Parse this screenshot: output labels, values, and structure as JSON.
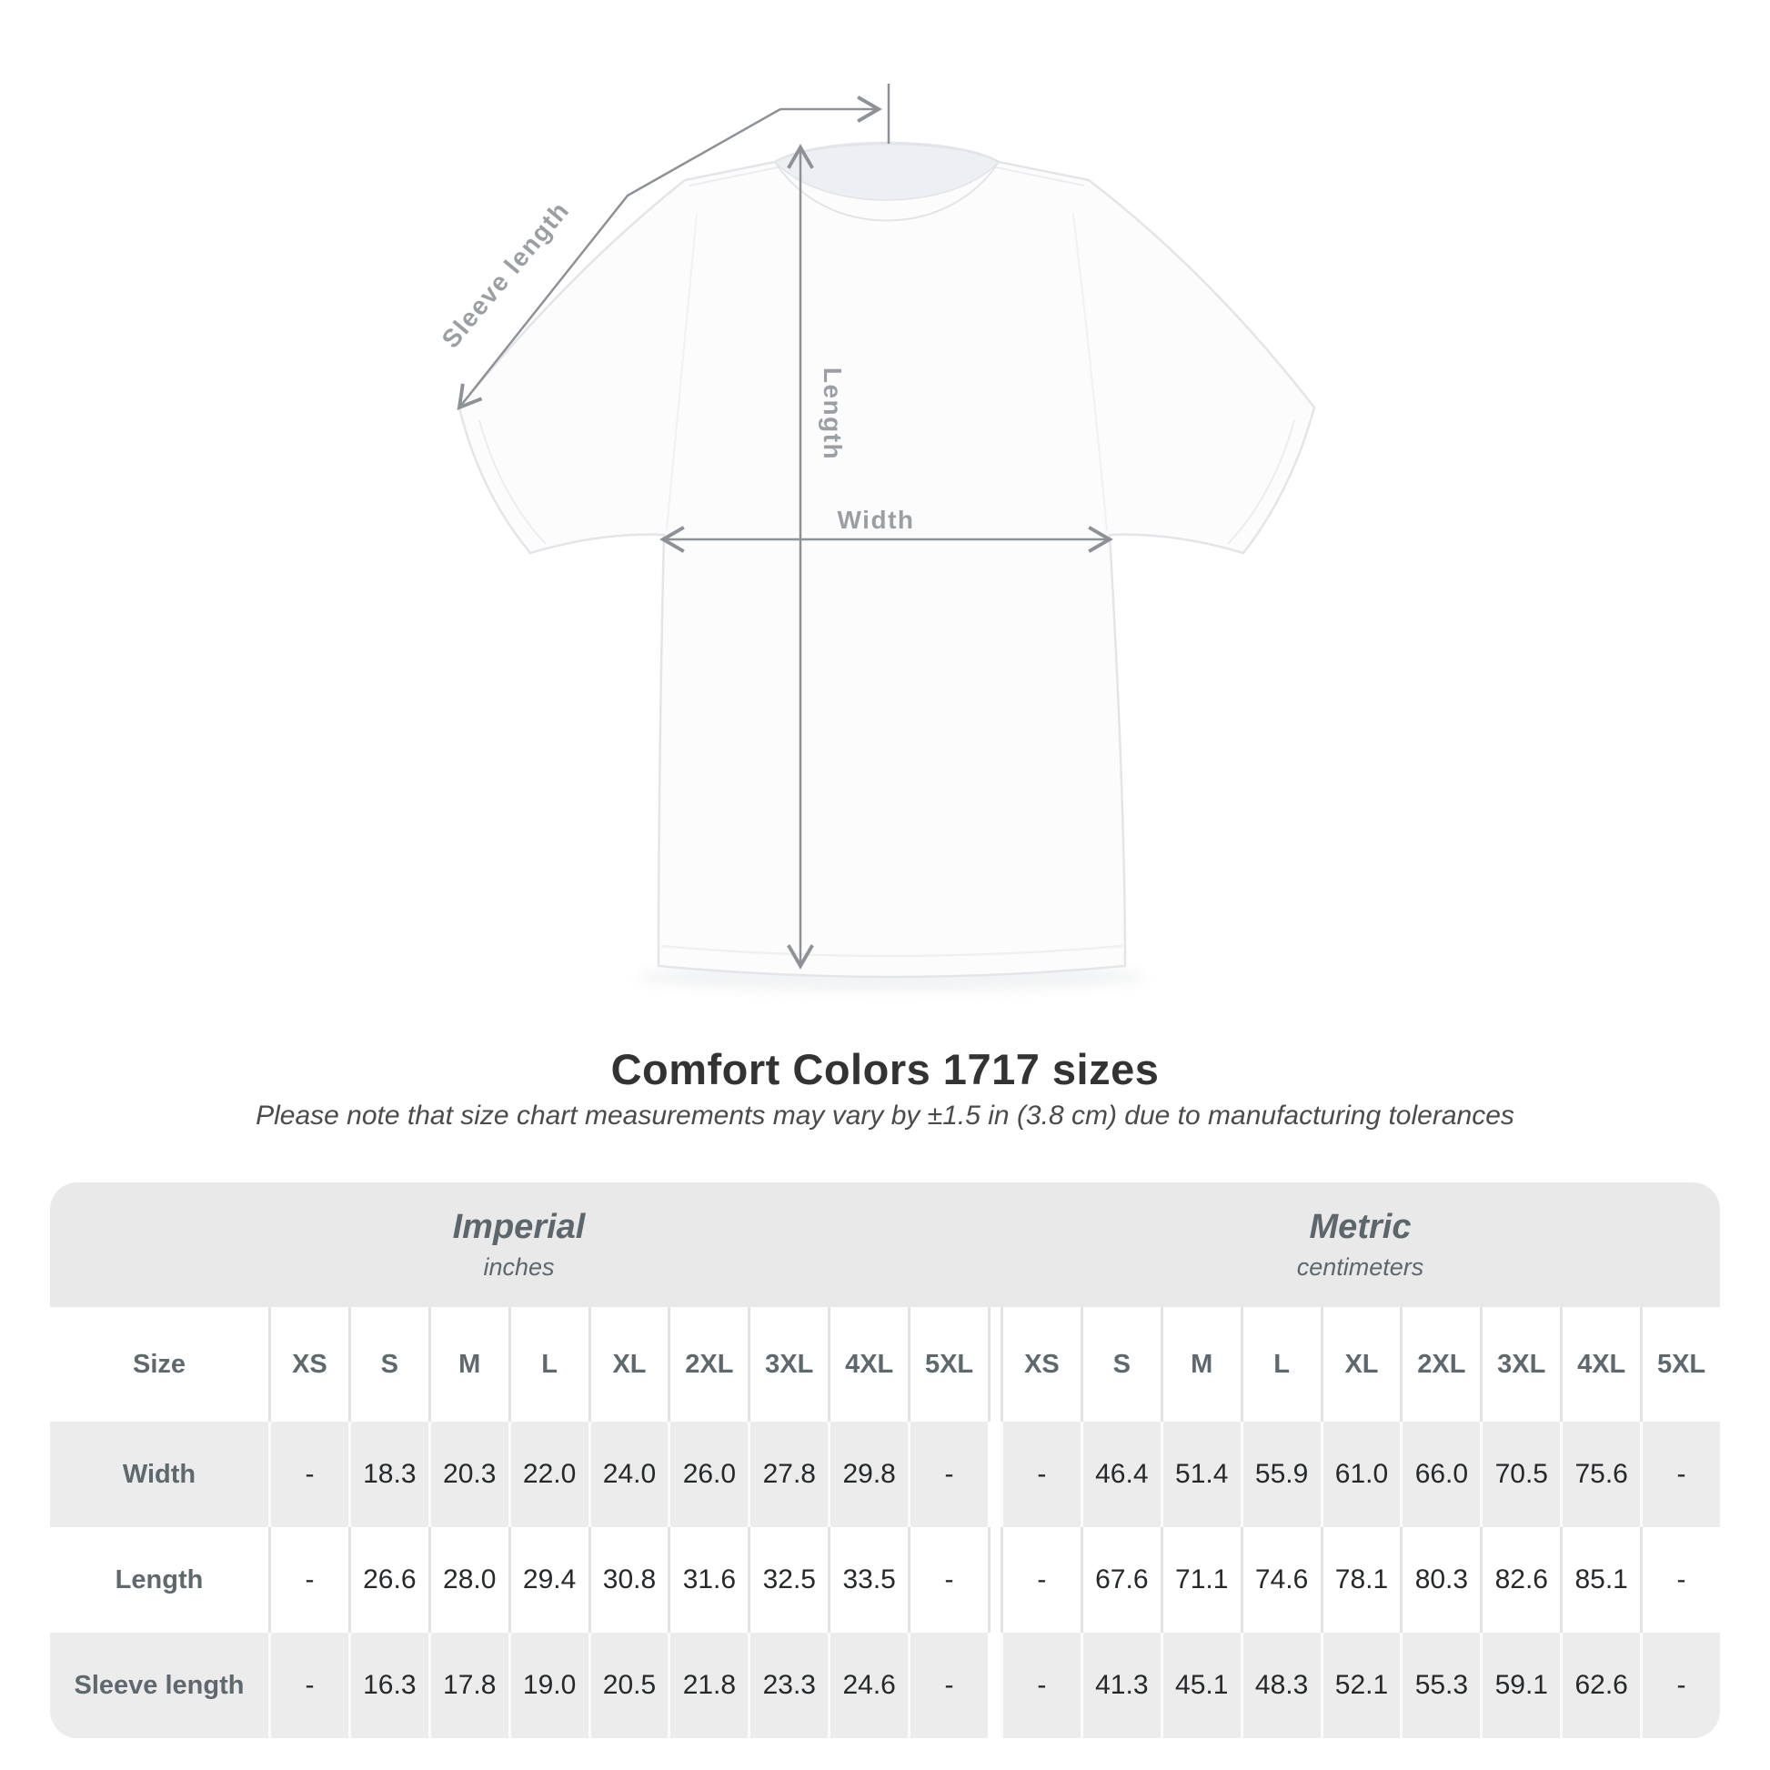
{
  "title": "Comfort Colors 1717 sizes",
  "subtitle": "Please note that size chart measurements may vary by ±1.5 in (3.8 cm) due to manufacturing tolerances",
  "diagram": {
    "sleeve_length_label": "Sleeve length",
    "length_label": "Length",
    "width_label": "Width",
    "line_color": "#8e9297",
    "label_color": "#9b9fa3"
  },
  "colors": {
    "page_background": "#ffffff",
    "band_background": "#e9e9e9",
    "stripe_row_background": "#ececec",
    "header_text": "#5f696d",
    "value_text": "#26292b",
    "title_text": "#333333"
  },
  "chart_data": {
    "type": "table",
    "title": "Comfort Colors 1717 sizes",
    "note": "Please note that size chart measurements may vary by ±1.5 in (3.8 cm) due to manufacturing tolerances",
    "size_column_header": "Size",
    "unit_groups": [
      {
        "label": "Imperial",
        "unit": "inches"
      },
      {
        "label": "Metric",
        "unit": "centimeters"
      }
    ],
    "sizes": [
      "XS",
      "S",
      "M",
      "L",
      "XL",
      "2XL",
      "3XL",
      "4XL",
      "5XL"
    ],
    "rows": [
      {
        "label": "Width",
        "imperial": [
          "-",
          "18.3",
          "20.3",
          "22.0",
          "24.0",
          "26.0",
          "27.8",
          "29.8",
          "-"
        ],
        "metric": [
          "-",
          "46.4",
          "51.4",
          "55.9",
          "61.0",
          "66.0",
          "70.5",
          "75.6",
          "-"
        ]
      },
      {
        "label": "Length",
        "imperial": [
          "-",
          "26.6",
          "28.0",
          "29.4",
          "30.8",
          "31.6",
          "32.5",
          "33.5",
          "-"
        ],
        "metric": [
          "-",
          "67.6",
          "71.1",
          "74.6",
          "78.1",
          "80.3",
          "82.6",
          "85.1",
          "-"
        ]
      },
      {
        "label": "Sleeve length",
        "imperial": [
          "-",
          "16.3",
          "17.8",
          "19.0",
          "20.5",
          "21.8",
          "23.3",
          "24.6",
          "-"
        ],
        "metric": [
          "-",
          "41.3",
          "45.1",
          "48.3",
          "52.1",
          "55.3",
          "59.1",
          "62.6",
          "-"
        ]
      }
    ]
  }
}
